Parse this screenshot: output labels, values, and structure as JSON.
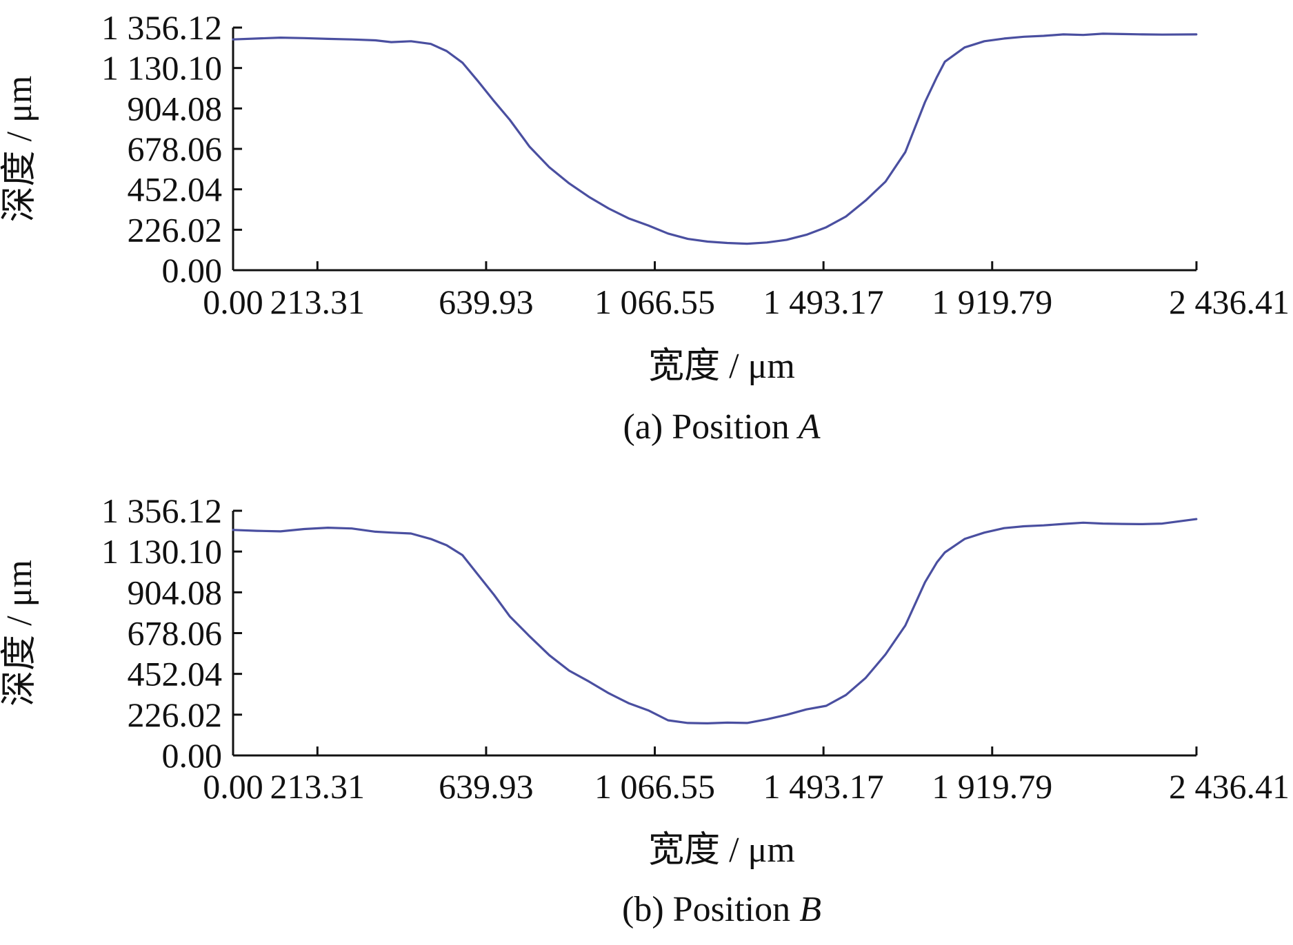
{
  "chart_data": [
    {
      "type": "line",
      "xlabel": "宽度 / μm",
      "ylabel": "深度 / μm",
      "caption_prefix": "(a) Position ",
      "caption_italic": "A",
      "xlim": [
        0,
        2436.41
      ],
      "ylim": [
        0,
        1356.12
      ],
      "x_ticks": [
        0.0,
        213.31,
        639.93,
        1066.55,
        1493.17,
        1919.79,
        2436.41
      ],
      "x_tick_labels": [
        "0.00",
        "213.31",
        "639.93",
        "1 066.55",
        "1 493.17",
        "1 919.79",
        "2 436.41"
      ],
      "y_ticks": [
        0.0,
        226.02,
        452.04,
        678.06,
        904.08,
        1130.1,
        1356.12
      ],
      "y_tick_labels": [
        "0.00",
        "226.02",
        "452.04",
        "678.06",
        "904.08",
        "1 130.10",
        "1 356.12"
      ],
      "grid": false,
      "series": [
        {
          "color": "#4a4fa0",
          "x": [
            0,
            60,
            120,
            180,
            240,
            300,
            360,
            400,
            450,
            500,
            540,
            580,
            620,
            660,
            700,
            750,
            800,
            850,
            900,
            950,
            1000,
            1050,
            1100,
            1150,
            1200,
            1250,
            1300,
            1350,
            1400,
            1450,
            1500,
            1550,
            1600,
            1650,
            1700,
            1750,
            1780,
            1800,
            1850,
            1900,
            1950,
            2000,
            2050,
            2100,
            2150,
            2200,
            2250,
            2300,
            2350,
            2436
          ],
          "y": [
            1290,
            1295,
            1300,
            1297,
            1293,
            1290,
            1285,
            1275,
            1280,
            1265,
            1225,
            1160,
            1055,
            945,
            840,
            690,
            575,
            485,
            410,
            345,
            290,
            250,
            205,
            175,
            160,
            152,
            148,
            155,
            170,
            198,
            240,
            300,
            390,
            495,
            660,
            940,
            1080,
            1165,
            1245,
            1280,
            1295,
            1305,
            1310,
            1318,
            1315,
            1322,
            1320,
            1318,
            1317,
            1318
          ]
        }
      ]
    },
    {
      "type": "line",
      "xlabel": "宽度 / μm",
      "ylabel": "深度 / μm",
      "caption_prefix": "(b) Position ",
      "caption_italic": "B",
      "xlim": [
        0,
        2436.41
      ],
      "ylim": [
        0,
        1356.12
      ],
      "x_ticks": [
        0.0,
        213.31,
        639.93,
        1066.55,
        1493.17,
        1919.79,
        2436.41
      ],
      "x_tick_labels": [
        "0.00",
        "213.31",
        "639.93",
        "1 066.55",
        "1 493.17",
        "1 919.79",
        "2 436.41"
      ],
      "y_ticks": [
        0.0,
        226.02,
        452.04,
        678.06,
        904.08,
        1130.1,
        1356.12
      ],
      "y_tick_labels": [
        "0.00",
        "226.02",
        "452.04",
        "678.06",
        "904.08",
        "1 130.10",
        "1 356.12"
      ],
      "grid": false,
      "series": [
        {
          "color": "#4a4fa0",
          "x": [
            0,
            60,
            120,
            180,
            240,
            300,
            360,
            400,
            450,
            500,
            540,
            580,
            620,
            660,
            700,
            750,
            800,
            850,
            900,
            950,
            1000,
            1050,
            1100,
            1150,
            1200,
            1250,
            1300,
            1350,
            1400,
            1450,
            1500,
            1550,
            1600,
            1650,
            1700,
            1750,
            1780,
            1800,
            1850,
            1900,
            1950,
            2000,
            2050,
            2100,
            2150,
            2200,
            2250,
            2300,
            2350,
            2436
          ],
          "y": [
            1250,
            1245,
            1242,
            1255,
            1262,
            1258,
            1240,
            1235,
            1230,
            1200,
            1165,
            1110,
            1000,
            890,
            770,
            660,
            555,
            470,
            410,
            345,
            290,
            250,
            195,
            180,
            178,
            182,
            180,
            200,
            225,
            255,
            275,
            335,
            430,
            560,
            720,
            960,
            1070,
            1125,
            1200,
            1235,
            1260,
            1270,
            1275,
            1283,
            1290,
            1285,
            1283,
            1282,
            1285,
            1310
          ]
        }
      ]
    }
  ]
}
